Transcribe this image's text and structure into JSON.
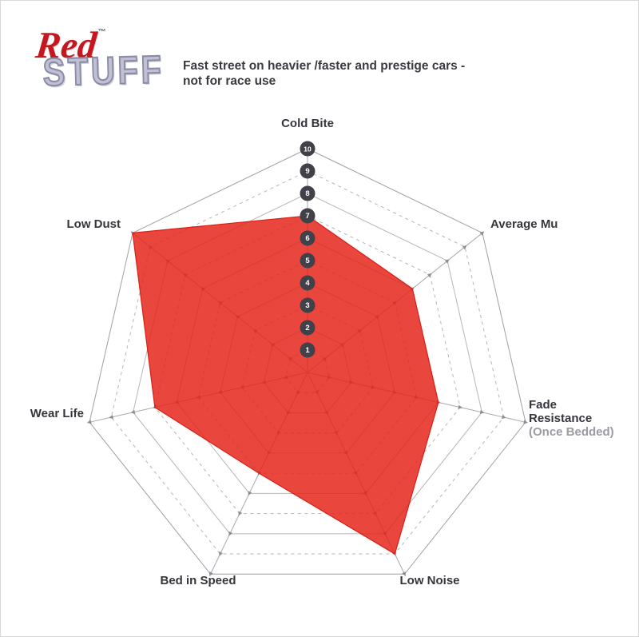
{
  "page": {
    "background_color": "#ffffff",
    "border_color": "#d9d9d9"
  },
  "logo": {
    "red_text": "Red",
    "stuff_text": "STUFF",
    "trademark": "™",
    "red_color": "#c5171e",
    "stuff_fill_color": "#c0c0d4",
    "stuff_outline_color": "#8b8ba6"
  },
  "subtitle": {
    "line1": "Fast street on heavier /faster and prestige cars -",
    "line2": "not for race use",
    "color": "#3a3a40"
  },
  "chart_data": {
    "type": "radar",
    "title": "RedStuff brake pad performance profile",
    "axes": [
      "Cold Bite",
      "Average Mu",
      "Fade Resistance (Once Bedded)",
      "Low Noise",
      "Bed in Speed",
      "Wear Life",
      "Low Dust"
    ],
    "axis_display": {
      "cold_bite": "Cold Bite",
      "average_mu": "Average Mu",
      "fade_lines": [
        "Fade",
        "Resistance",
        "(Once Bedded)"
      ],
      "low_noise": "Low Noise",
      "bed_in_speed": "Bed in Speed",
      "wear_life": "Wear Life",
      "low_dust": "Low Dust"
    },
    "values": [
      7,
      6,
      6,
      9,
      5,
      7,
      10
    ],
    "scale": {
      "min": 1,
      "max": 10,
      "ticks": [
        1,
        2,
        3,
        4,
        5,
        6,
        7,
        8,
        9,
        10
      ]
    },
    "layout_hints": {
      "rings": 10,
      "odd_rings_dashed": true,
      "grid": true,
      "legend": "none",
      "scale_badges_on_axis": "Cold Bite"
    },
    "style": {
      "fill_color": "#e5261b",
      "fill_opacity": 0.85,
      "stroke_color": "#d81f15",
      "grid_color": "#b6b6b6",
      "spoke_color": "#a9a9a9",
      "tick_arrow_color": "#86868e",
      "badge_color": "#41414a",
      "badge_text_color": "#ffffff"
    }
  }
}
